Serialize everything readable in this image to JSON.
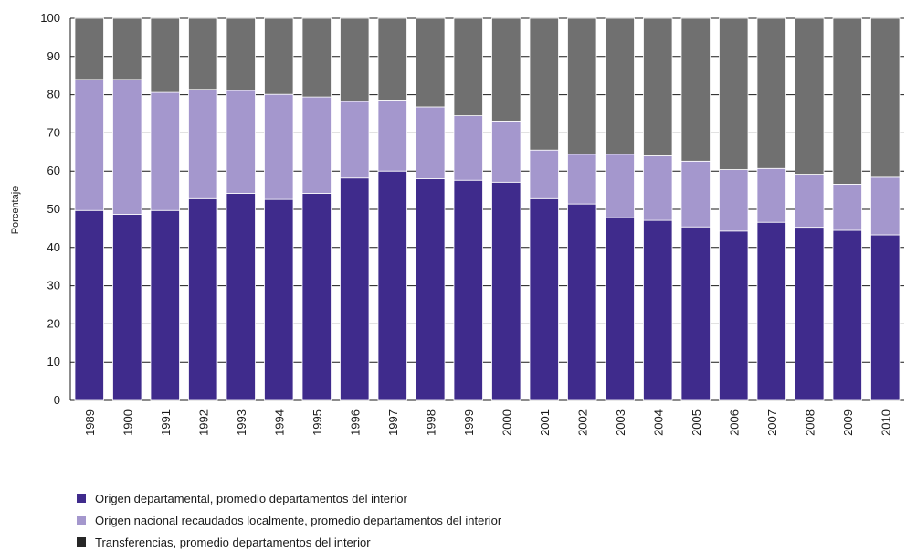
{
  "chart_data": {
    "type": "bar",
    "stacked": true,
    "categories": [
      "1989",
      "1900",
      "1991",
      "1992",
      "1993",
      "1994",
      "1995",
      "1996",
      "1997",
      "1998",
      "1999",
      "2000",
      "2001",
      "2002",
      "2003",
      "2004",
      "2005",
      "2006",
      "2007",
      "2008",
      "2009",
      "2010"
    ],
    "series": [
      {
        "name": "Origen departamental, promedio departamentos del interior",
        "color": "#3f2b8c",
        "values": [
          49.7,
          48.7,
          49.7,
          52.8,
          54.2,
          52.6,
          54.2,
          58.2,
          60.0,
          58.0,
          57.6,
          57.1,
          52.8,
          51.4,
          47.8,
          47.1,
          45.4,
          44.3,
          46.6,
          45.3,
          44.5,
          43.3
        ]
      },
      {
        "name": "Origen nacional recaudados localmente, promedio departamentos del interior",
        "color": "#a497cd",
        "values": [
          34.3,
          35.3,
          30.9,
          28.6,
          26.9,
          27.5,
          25.2,
          20.0,
          18.6,
          18.8,
          16.9,
          16.0,
          12.7,
          13.0,
          16.6,
          16.9,
          17.2,
          16.1,
          14.1,
          13.9,
          12.1,
          15.1
        ]
      },
      {
        "name": "Transferencias, promedio departamentos del interior",
        "color": "#707070",
        "values": [
          16.0,
          16.0,
          19.4,
          18.6,
          18.9,
          19.9,
          20.6,
          21.8,
          21.4,
          23.2,
          25.5,
          26.9,
          34.5,
          35.6,
          35.6,
          36.0,
          37.4,
          39.6,
          39.3,
          40.8,
          43.4,
          41.6
        ]
      }
    ],
    "legend_swatch_colors": [
      "#3f2b8c",
      "#a497cd",
      "#262626"
    ],
    "ylabel": "Porcentaje",
    "ylim": [
      0,
      100
    ],
    "yticks": [
      0,
      10,
      20,
      30,
      40,
      50,
      60,
      70,
      80,
      90,
      100
    ],
    "grid": true,
    "legend_position": "bottom-left"
  }
}
